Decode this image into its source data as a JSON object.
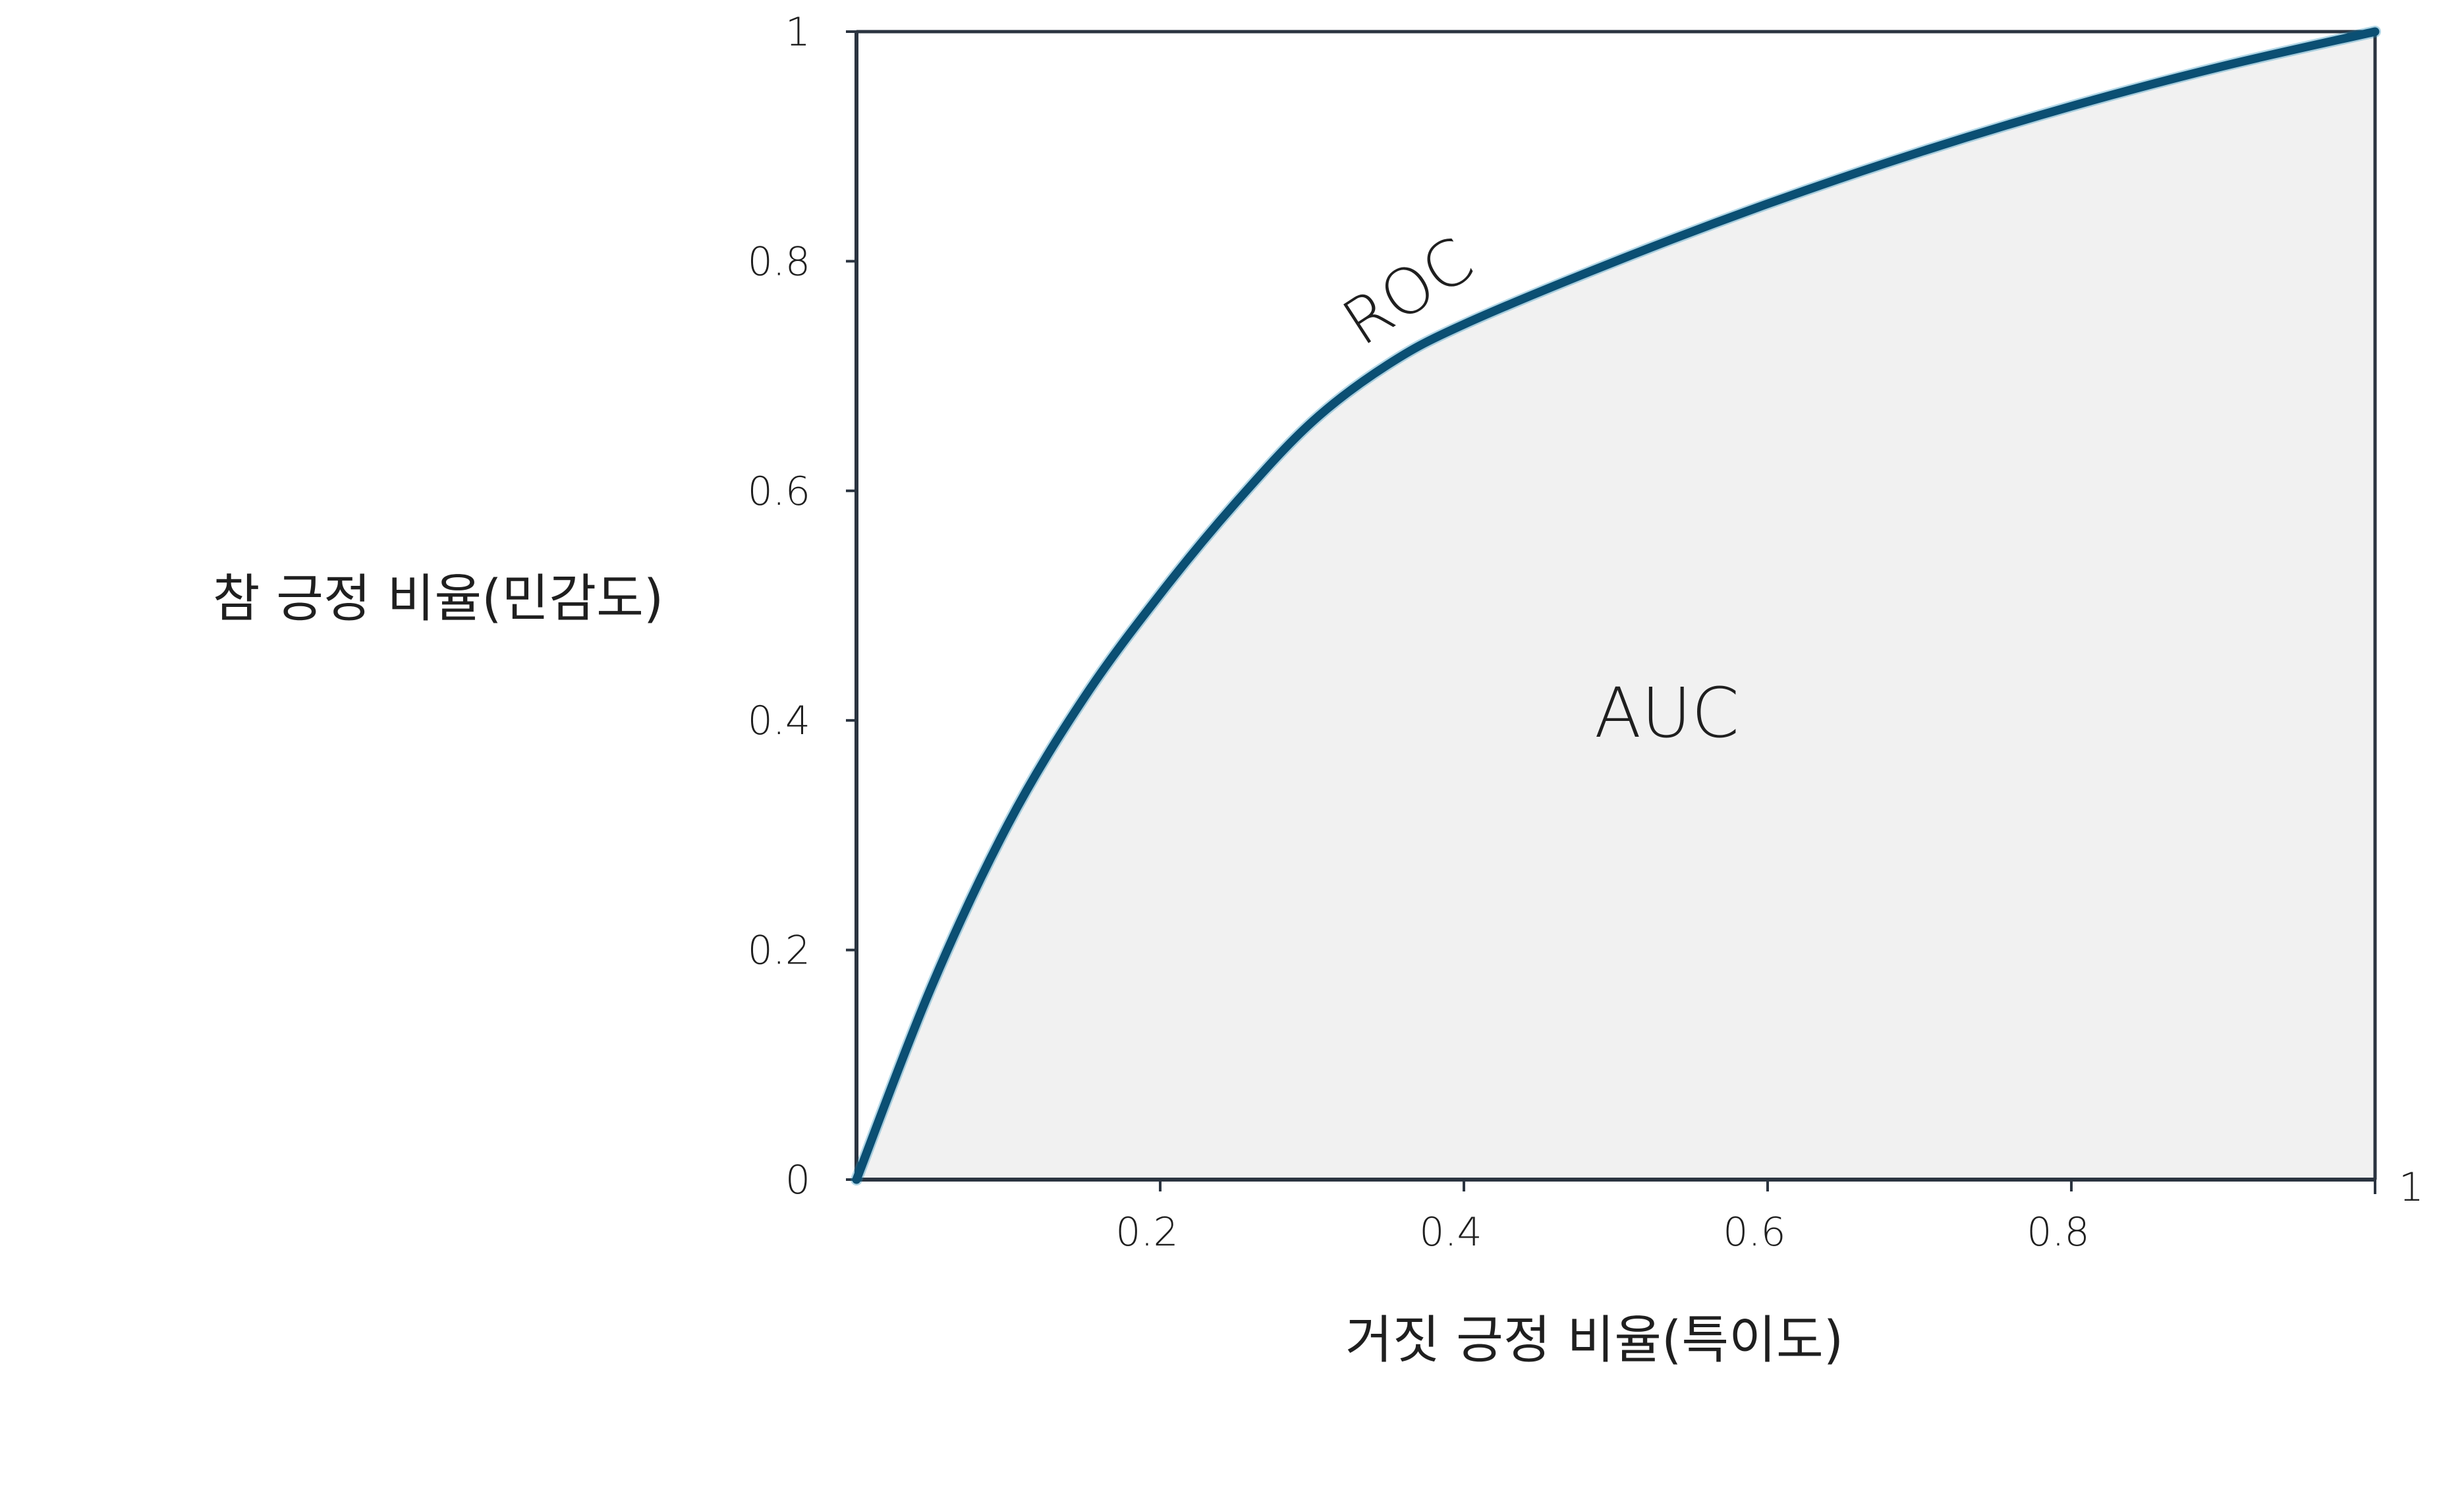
{
  "chart_data": {
    "type": "area",
    "title": "",
    "xlabel": "거짓 긍정 비율(특이도)",
    "ylabel": "참 긍정 비율(민감도)",
    "xlim": [
      0,
      1
    ],
    "ylim": [
      0,
      1
    ],
    "x_ticks": [
      "0.2",
      "0.4",
      "0.6",
      "0.8",
      "1"
    ],
    "y_ticks": [
      "0",
      "0.2",
      "0.4",
      "0.6",
      "0.8",
      "1"
    ],
    "grid": false,
    "legend": "none",
    "curve_label": "ROC",
    "area_label": "AUC",
    "series": [
      {
        "name": "ROC",
        "x": [
          0,
          0.05,
          0.1,
          0.15,
          0.2,
          0.25,
          0.3,
          0.35,
          0.4,
          0.5,
          0.6,
          0.7,
          0.8,
          0.9,
          1.0
        ],
        "y": [
          0,
          0.17,
          0.31,
          0.42,
          0.51,
          0.59,
          0.66,
          0.71,
          0.745,
          0.8,
          0.85,
          0.895,
          0.935,
          0.97,
          1.0
        ],
        "color": "#0b4f73"
      }
    ],
    "colors": {
      "curve": "#0b4f73",
      "area_fill": "#f1f1f1",
      "axis": "#2b3440",
      "text": "#1f1f1f"
    }
  }
}
